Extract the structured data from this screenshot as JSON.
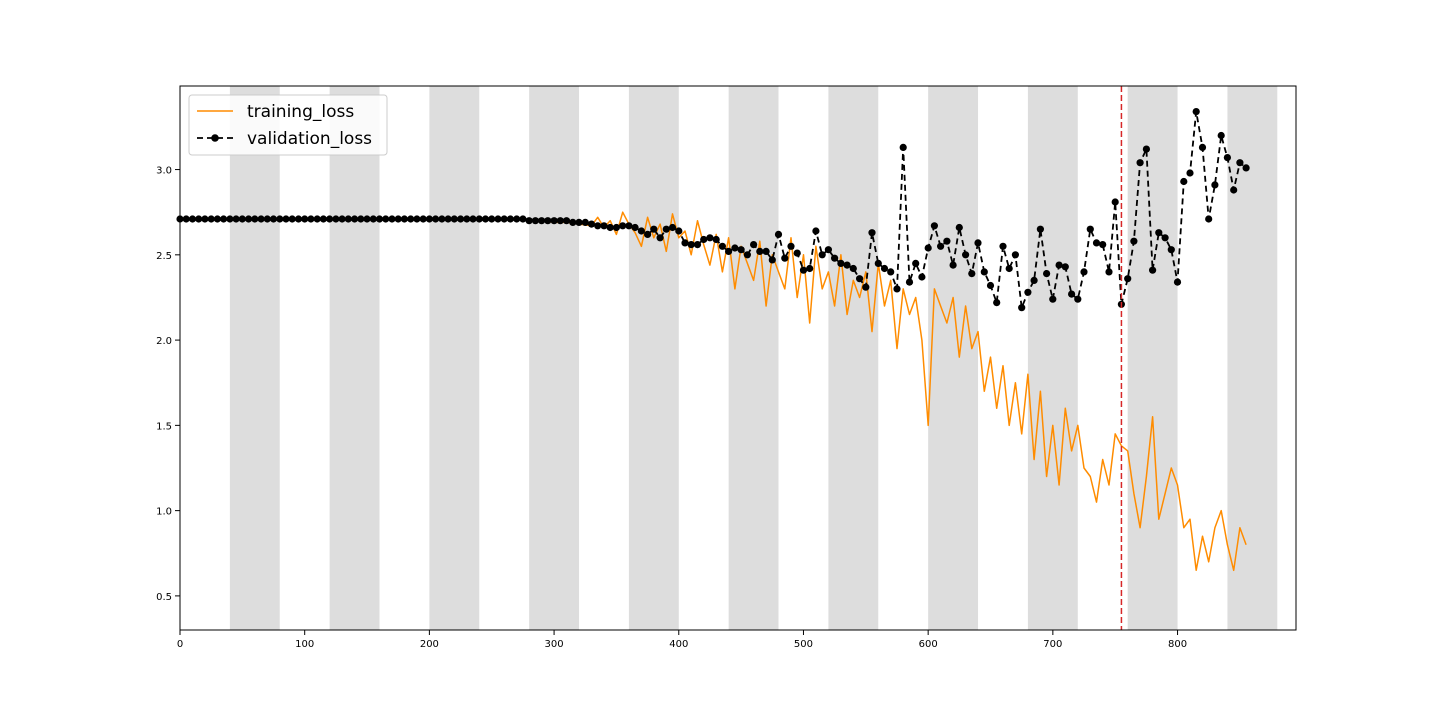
{
  "chart_data": {
    "type": "line",
    "title": "",
    "xlabel": "",
    "ylabel": "",
    "xlim": [
      0,
      895
    ],
    "ylim": [
      0.3,
      3.49
    ],
    "grid": false,
    "legend_placement": "top-left",
    "x_ticks": [
      0,
      100,
      200,
      300,
      400,
      500,
      600,
      700,
      800
    ],
    "y_ticks": [
      0.5,
      1.0,
      1.5,
      2.0,
      2.5,
      3.0
    ],
    "y_tick_labels": [
      "0.5",
      "1.0",
      "1.5",
      "2.0",
      "2.5",
      "3.0"
    ],
    "shaded_bands": [
      [
        40,
        80
      ],
      [
        120,
        160
      ],
      [
        200,
        240
      ],
      [
        280,
        320
      ],
      [
        360,
        400
      ],
      [
        440,
        480
      ],
      [
        520,
        560
      ],
      [
        600,
        640
      ],
      [
        680,
        720
      ],
      [
        760,
        800
      ],
      [
        840,
        880
      ]
    ],
    "vertical_marker": {
      "x": 755,
      "color": "#d62728",
      "style": "dashed"
    },
    "colors": {
      "training": "#ff8c00",
      "validation": "#000000",
      "band": "#dddddd",
      "marker": "#d62728"
    },
    "series": [
      {
        "name": "training_loss",
        "style": "solid",
        "x": [
          0,
          25,
          50,
          75,
          100,
          125,
          150,
          175,
          200,
          225,
          250,
          275,
          290,
          300,
          310,
          320,
          330,
          335,
          340,
          345,
          350,
          355,
          360,
          365,
          370,
          375,
          380,
          385,
          390,
          395,
          400,
          405,
          410,
          415,
          420,
          425,
          430,
          435,
          440,
          445,
          450,
          455,
          460,
          465,
          470,
          475,
          480,
          485,
          490,
          495,
          500,
          505,
          510,
          515,
          520,
          525,
          530,
          535,
          540,
          545,
          550,
          555,
          560,
          565,
          570,
          575,
          580,
          585,
          590,
          595,
          600,
          605,
          610,
          615,
          620,
          625,
          630,
          635,
          640,
          645,
          650,
          655,
          660,
          665,
          670,
          675,
          680,
          685,
          690,
          695,
          700,
          705,
          710,
          715,
          720,
          725,
          730,
          735,
          740,
          745,
          750,
          755,
          760,
          765,
          770,
          775,
          780,
          785,
          790,
          795,
          800,
          805,
          810,
          815,
          820,
          825,
          830,
          835,
          840,
          845,
          850,
          855
        ],
        "y": [
          2.71,
          2.71,
          2.71,
          2.71,
          2.71,
          2.71,
          2.71,
          2.71,
          2.71,
          2.71,
          2.71,
          2.71,
          2.7,
          2.69,
          2.69,
          2.68,
          2.67,
          2.72,
          2.66,
          2.7,
          2.62,
          2.75,
          2.68,
          2.63,
          2.55,
          2.72,
          2.6,
          2.68,
          2.52,
          2.74,
          2.6,
          2.64,
          2.5,
          2.7,
          2.56,
          2.44,
          2.62,
          2.4,
          2.6,
          2.3,
          2.55,
          2.45,
          2.35,
          2.58,
          2.2,
          2.5,
          2.4,
          2.3,
          2.6,
          2.25,
          2.5,
          2.1,
          2.55,
          2.3,
          2.4,
          2.2,
          2.5,
          2.15,
          2.35,
          2.25,
          2.4,
          2.05,
          2.45,
          2.2,
          2.35,
          1.95,
          2.3,
          2.15,
          2.25,
          2.0,
          1.5,
          2.3,
          2.2,
          2.1,
          2.25,
          1.9,
          2.2,
          1.95,
          2.05,
          1.7,
          1.9,
          1.6,
          1.85,
          1.5,
          1.75,
          1.45,
          1.8,
          1.3,
          1.7,
          1.2,
          1.5,
          1.15,
          1.6,
          1.35,
          1.5,
          1.25,
          1.2,
          1.05,
          1.3,
          1.15,
          1.45,
          1.38,
          1.35,
          1.1,
          0.9,
          1.2,
          1.55,
          0.95,
          1.1,
          1.25,
          1.15,
          0.9,
          0.95,
          0.65,
          0.85,
          0.7,
          0.9,
          1.0,
          0.8,
          0.65,
          0.9,
          0.8
        ],
        "note_samples": "approximate"
      },
      {
        "name": "validation_loss",
        "style": "dashed-with-markers",
        "x": [
          0,
          5,
          10,
          15,
          20,
          25,
          30,
          35,
          40,
          45,
          50,
          55,
          60,
          65,
          70,
          75,
          80,
          85,
          90,
          95,
          100,
          105,
          110,
          115,
          120,
          125,
          130,
          135,
          140,
          145,
          150,
          155,
          160,
          165,
          170,
          175,
          180,
          185,
          190,
          195,
          200,
          205,
          210,
          215,
          220,
          225,
          230,
          235,
          240,
          245,
          250,
          255,
          260,
          265,
          270,
          275,
          280,
          285,
          290,
          295,
          300,
          305,
          310,
          315,
          320,
          325,
          330,
          335,
          340,
          345,
          350,
          355,
          360,
          365,
          370,
          375,
          380,
          385,
          390,
          395,
          400,
          405,
          410,
          415,
          420,
          425,
          430,
          435,
          440,
          445,
          450,
          455,
          460,
          465,
          470,
          475,
          480,
          485,
          490,
          495,
          500,
          505,
          510,
          515,
          520,
          525,
          530,
          535,
          540,
          545,
          550,
          555,
          560,
          565,
          570,
          575,
          580,
          585,
          590,
          595,
          600,
          605,
          610,
          615,
          620,
          625,
          630,
          635,
          640,
          645,
          650,
          655,
          660,
          665,
          670,
          675,
          680,
          685,
          690,
          695,
          700,
          705,
          710,
          715,
          720,
          725,
          730,
          735,
          740,
          745,
          750,
          755,
          760,
          765,
          770,
          775,
          780,
          785,
          790,
          795,
          800,
          805,
          810,
          815,
          820,
          825,
          830,
          835,
          840,
          845,
          850,
          855
        ],
        "y": [
          2.71,
          2.71,
          2.71,
          2.71,
          2.71,
          2.71,
          2.71,
          2.71,
          2.71,
          2.71,
          2.71,
          2.71,
          2.71,
          2.71,
          2.71,
          2.71,
          2.71,
          2.71,
          2.71,
          2.71,
          2.71,
          2.71,
          2.71,
          2.71,
          2.71,
          2.71,
          2.71,
          2.71,
          2.71,
          2.71,
          2.71,
          2.71,
          2.71,
          2.71,
          2.71,
          2.71,
          2.71,
          2.71,
          2.71,
          2.71,
          2.71,
          2.71,
          2.71,
          2.71,
          2.71,
          2.71,
          2.71,
          2.71,
          2.71,
          2.71,
          2.71,
          2.71,
          2.71,
          2.71,
          2.71,
          2.71,
          2.7,
          2.7,
          2.7,
          2.7,
          2.7,
          2.7,
          2.7,
          2.69,
          2.69,
          2.69,
          2.68,
          2.67,
          2.67,
          2.66,
          2.66,
          2.67,
          2.67,
          2.66,
          2.64,
          2.62,
          2.65,
          2.6,
          2.65,
          2.66,
          2.64,
          2.57,
          2.56,
          2.56,
          2.59,
          2.6,
          2.59,
          2.55,
          2.52,
          2.54,
          2.53,
          2.5,
          2.56,
          2.52,
          2.52,
          2.47,
          2.62,
          2.48,
          2.55,
          2.51,
          2.41,
          2.42,
          2.64,
          2.5,
          2.53,
          2.48,
          2.45,
          2.44,
          2.42,
          2.36,
          2.31,
          2.63,
          2.45,
          2.42,
          2.4,
          2.3,
          3.13,
          2.34,
          2.45,
          2.37,
          2.54,
          2.67,
          2.55,
          2.58,
          2.44,
          2.66,
          2.5,
          2.39,
          2.57,
          2.4,
          2.32,
          2.22,
          2.55,
          2.42,
          2.5,
          2.19,
          2.28,
          2.35,
          2.65,
          2.39,
          2.24,
          2.44,
          2.43,
          2.27,
          2.24,
          2.4,
          2.65,
          2.57,
          2.56,
          2.4,
          2.81,
          2.21,
          2.36,
          2.58,
          3.04,
          3.12,
          2.41,
          2.63,
          2.6,
          2.53,
          2.34,
          2.93,
          2.98,
          3.34,
          3.13,
          2.71,
          2.91,
          3.2,
          3.07,
          2.88,
          3.04,
          3.01
        ],
        "note_samples": "approximate"
      }
    ]
  }
}
